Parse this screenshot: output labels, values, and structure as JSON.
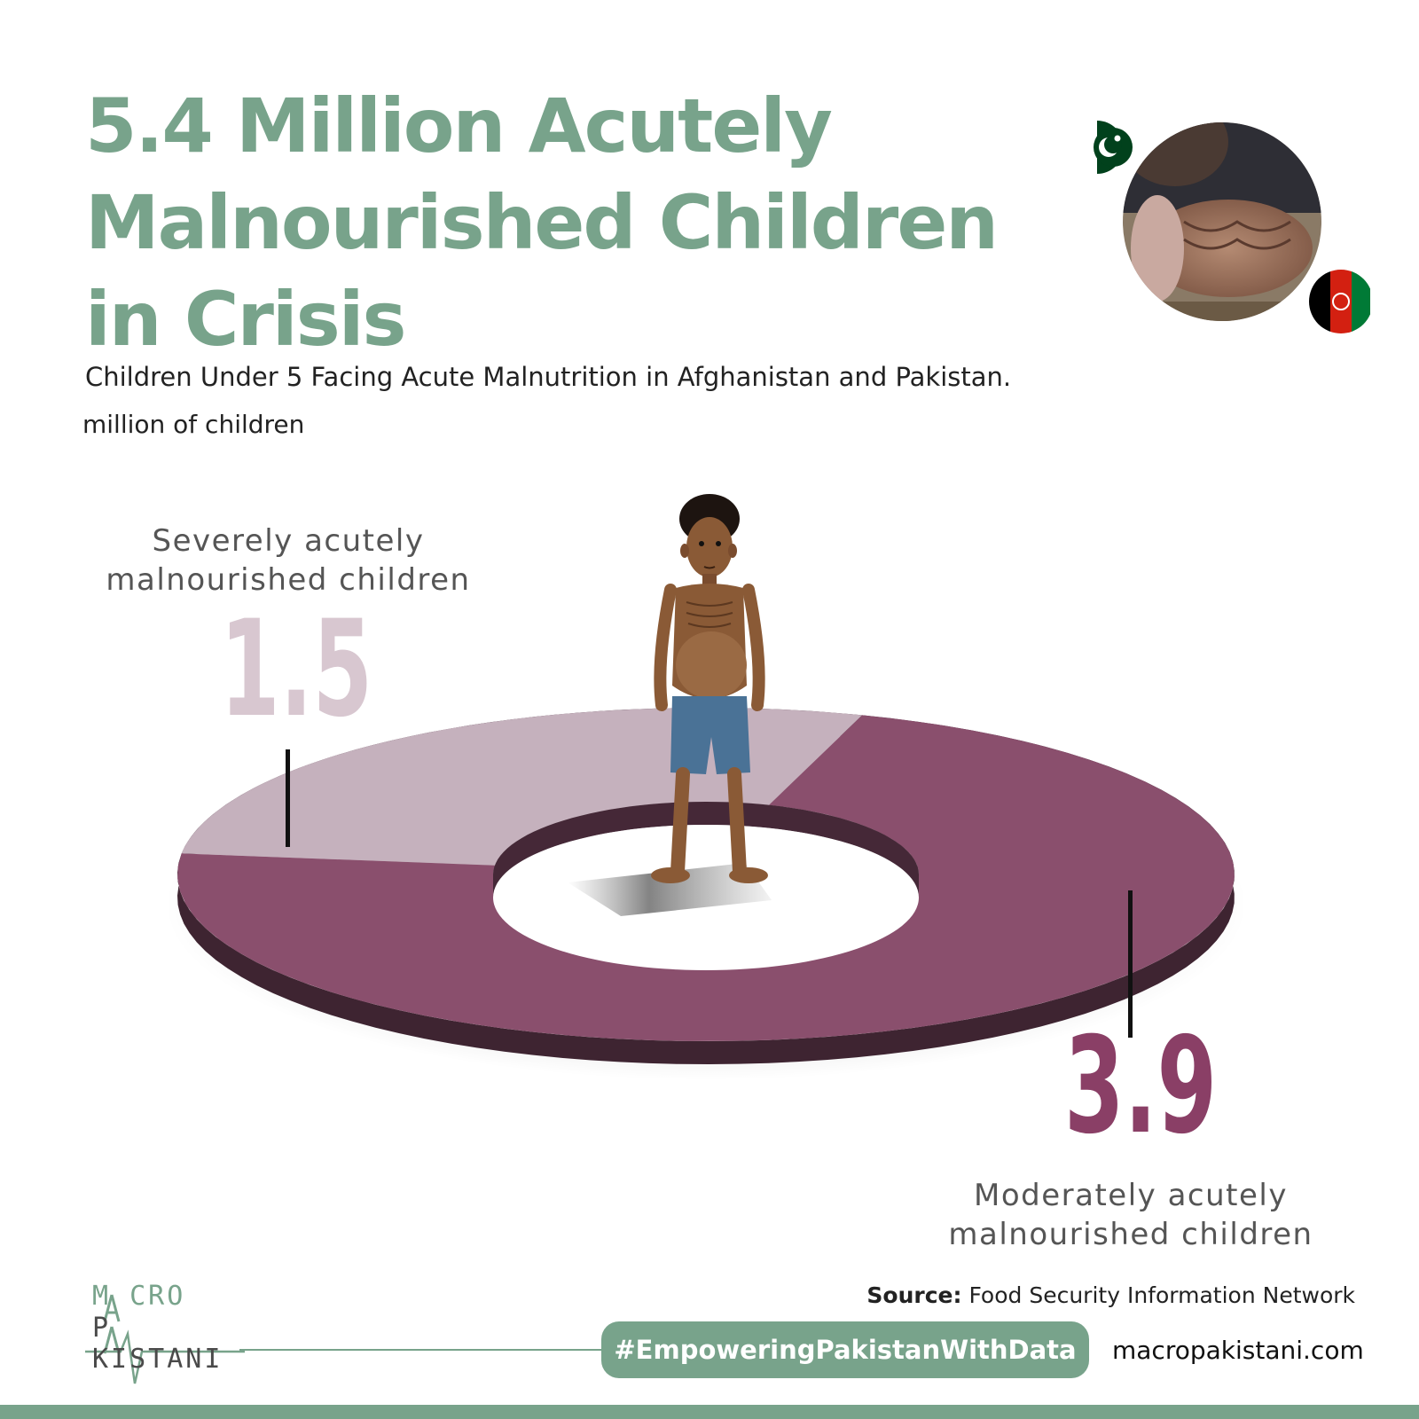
{
  "header": {
    "title_lines": [
      "5.4 Million Acutely",
      "Malnourished Children",
      "in Crisis"
    ],
    "subtitle": "Children Under 5 Facing Acute Malnutrition in Afghanistan and Pakistan.",
    "unit": "million of children"
  },
  "chart_data": {
    "type": "pie",
    "style": "3d-donut",
    "categories": [
      "Severely acutely malnourished children",
      "Moderately acutely malnourished children"
    ],
    "values": [
      1.5,
      3.9
    ],
    "value_labels": [
      "1.5",
      "3.9"
    ],
    "label_lines": [
      [
        "Severely acutely",
        "malnourished children"
      ],
      [
        "Moderately acutely",
        "malnourished children"
      ]
    ],
    "colors": [
      "#c5b1bd",
      "#8a4f6d"
    ],
    "value_colors": [
      "#d8c7d0",
      "#8a3f66"
    ],
    "legend": "none"
  },
  "footer": {
    "logo_line1": "M CRO",
    "logo_line2": "P KISTANI",
    "source_label": "Source:",
    "source_text": " Food Security Information Network",
    "hashtag": "#EmpoweringPakistanWithData",
    "website": "macropakistani.com"
  },
  "colors": {
    "brand": "#78a38b",
    "ink": "#222222",
    "pakistan_green": "#01411c",
    "afghan_red": "#d32011"
  },
  "icons": [
    "pakistan-flag-icon",
    "afghanistan-flag-icon",
    "child-illustration",
    "photo-thumbnail"
  ]
}
